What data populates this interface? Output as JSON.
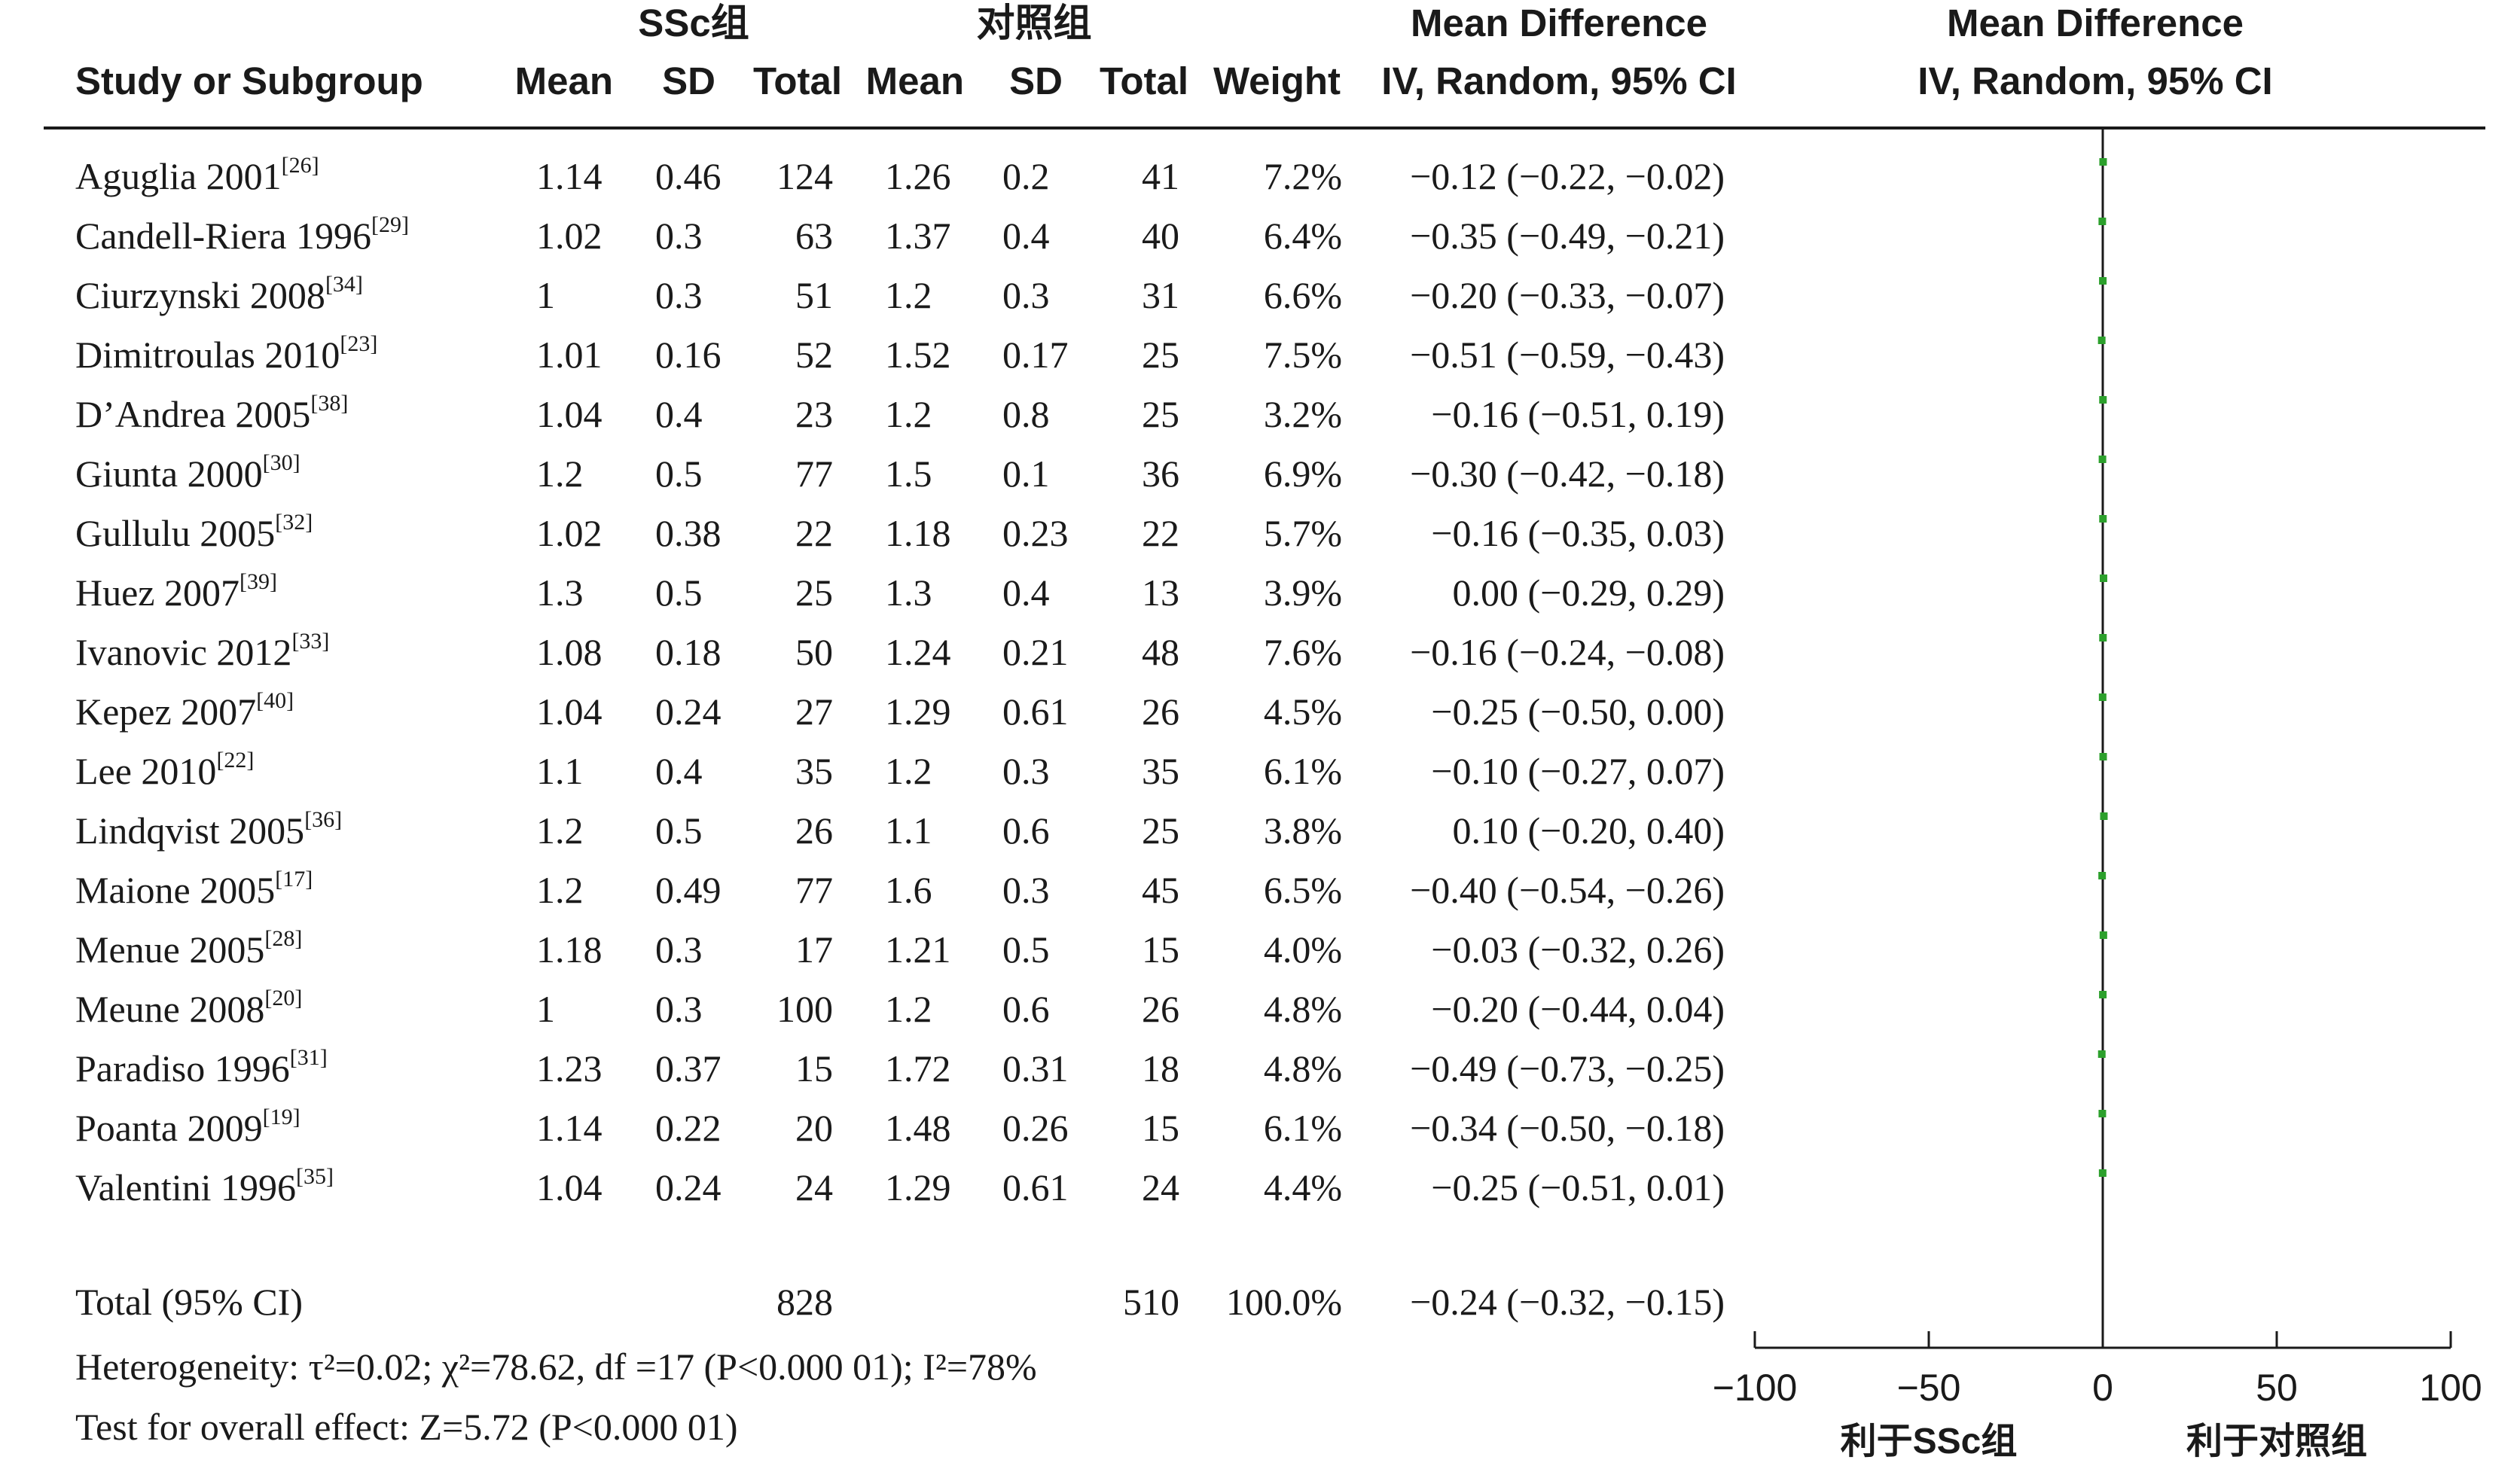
{
  "headers": {
    "group_ssc": "SSc组",
    "group_control": "对照组",
    "study": "Study or Subgroup",
    "mean": "Mean",
    "sd": "SD",
    "total": "Total",
    "weight": "Weight",
    "md_title": "Mean Difference",
    "md_method": "IV, Random, 95% CI",
    "plot_title": "Mean Difference",
    "plot_method": "IV, Random, 95% CI"
  },
  "rows": [
    {
      "study": "Aguglia 2001",
      "ref": "[26]",
      "ssc_mean": "1.14",
      "ssc_sd": "0.46",
      "ssc_total": "124",
      "ctl_mean": "1.26",
      "ctl_sd": "0.2",
      "ctl_total": "41",
      "weight": "7.2%",
      "ci": "−0.12 (−0.22, −0.02)"
    },
    {
      "study": "Candell-Riera 1996",
      "ref": "[29]",
      "ssc_mean": "1.02",
      "ssc_sd": "0.3",
      "ssc_total": "63",
      "ctl_mean": "1.37",
      "ctl_sd": "0.4",
      "ctl_total": "40",
      "weight": "6.4%",
      "ci": "−0.35 (−0.49, −0.21)"
    },
    {
      "study": "Ciurzynski 2008",
      "ref": "[34]",
      "ssc_mean": "1",
      "ssc_sd": "0.3",
      "ssc_total": "51",
      "ctl_mean": "1.2",
      "ctl_sd": "0.3",
      "ctl_total": "31",
      "weight": "6.6%",
      "ci": "−0.20 (−0.33, −0.07)"
    },
    {
      "study": "Dimitroulas 2010",
      "ref": "[23]",
      "ssc_mean": "1.01",
      "ssc_sd": "0.16",
      "ssc_total": "52",
      "ctl_mean": "1.52",
      "ctl_sd": "0.17",
      "ctl_total": "25",
      "weight": "7.5%",
      "ci": "−0.51 (−0.59, −0.43)"
    },
    {
      "study": "D’Andrea 2005",
      "ref": "[38]",
      "ssc_mean": "1.04",
      "ssc_sd": "0.4",
      "ssc_total": "23",
      "ctl_mean": "1.2",
      "ctl_sd": "0.8",
      "ctl_total": "25",
      "weight": "3.2%",
      "ci": "−0.16 (−0.51, 0.19)"
    },
    {
      "study": "Giunta 2000",
      "ref": "[30]",
      "ssc_mean": "1.2",
      "ssc_sd": "0.5",
      "ssc_total": "77",
      "ctl_mean": "1.5",
      "ctl_sd": "0.1",
      "ctl_total": "36",
      "weight": "6.9%",
      "ci": "−0.30 (−0.42, −0.18)"
    },
    {
      "study": "Gullulu 2005",
      "ref": "[32]",
      "ssc_mean": "1.02",
      "ssc_sd": "0.38",
      "ssc_total": "22",
      "ctl_mean": "1.18",
      "ctl_sd": "0.23",
      "ctl_total": "22",
      "weight": "5.7%",
      "ci": "−0.16 (−0.35, 0.03)"
    },
    {
      "study": "Huez 2007",
      "ref": "[39]",
      "ssc_mean": "1.3",
      "ssc_sd": "0.5",
      "ssc_total": "25",
      "ctl_mean": "1.3",
      "ctl_sd": "0.4",
      "ctl_total": "13",
      "weight": "3.9%",
      "ci": "0.00 (−0.29, 0.29)"
    },
    {
      "study": "Ivanovic 2012",
      "ref": "[33]",
      "ssc_mean": "1.08",
      "ssc_sd": "0.18",
      "ssc_total": "50",
      "ctl_mean": "1.24",
      "ctl_sd": "0.21",
      "ctl_total": "48",
      "weight": "7.6%",
      "ci": "−0.16 (−0.24, −0.08)"
    },
    {
      "study": "Kepez 2007",
      "ref": "[40]",
      "ssc_mean": "1.04",
      "ssc_sd": "0.24",
      "ssc_total": "27",
      "ctl_mean": "1.29",
      "ctl_sd": "0.61",
      "ctl_total": "26",
      "weight": "4.5%",
      "ci": "−0.25 (−0.50, 0.00)"
    },
    {
      "study": "Lee 2010",
      "ref": "[22]",
      "ssc_mean": "1.1",
      "ssc_sd": "0.4",
      "ssc_total": "35",
      "ctl_mean": "1.2",
      "ctl_sd": "0.3",
      "ctl_total": "35",
      "weight": "6.1%",
      "ci": "−0.10 (−0.27, 0.07)"
    },
    {
      "study": "Lindqvist 2005",
      "ref": "[36]",
      "ssc_mean": "1.2",
      "ssc_sd": "0.5",
      "ssc_total": "26",
      "ctl_mean": "1.1",
      "ctl_sd": "0.6",
      "ctl_total": "25",
      "weight": "3.8%",
      "ci": "0.10 (−0.20, 0.40)"
    },
    {
      "study": "Maione 2005",
      "ref": "[17]",
      "ssc_mean": "1.2",
      "ssc_sd": "0.49",
      "ssc_total": "77",
      "ctl_mean": "1.6",
      "ctl_sd": "0.3",
      "ctl_total": "45",
      "weight": "6.5%",
      "ci": "−0.40 (−0.54, −0.26)"
    },
    {
      "study": "Menue 2005",
      "ref": "[28]",
      "ssc_mean": "1.18",
      "ssc_sd": "0.3",
      "ssc_total": "17",
      "ctl_mean": "1.21",
      "ctl_sd": "0.5",
      "ctl_total": "15",
      "weight": "4.0%",
      "ci": "−0.03 (−0.32, 0.26)"
    },
    {
      "study": "Meune 2008",
      "ref": "[20]",
      "ssc_mean": "1",
      "ssc_sd": "0.3",
      "ssc_total": "100",
      "ctl_mean": "1.2",
      "ctl_sd": "0.6",
      "ctl_total": "26",
      "weight": "4.8%",
      "ci": "−0.20 (−0.44, 0.04)"
    },
    {
      "study": "Paradiso 1996",
      "ref": "[31]",
      "ssc_mean": "1.23",
      "ssc_sd": "0.37",
      "ssc_total": "15",
      "ctl_mean": "1.72",
      "ctl_sd": "0.31",
      "ctl_total": "18",
      "weight": "4.8%",
      "ci": "−0.49 (−0.73, −0.25)"
    },
    {
      "study": "Poanta 2009",
      "ref": "[19]",
      "ssc_mean": "1.14",
      "ssc_sd": "0.22",
      "ssc_total": "20",
      "ctl_mean": "1.48",
      "ctl_sd": "0.26",
      "ctl_total": "15",
      "weight": "6.1%",
      "ci": "−0.34 (−0.50, −0.18)"
    },
    {
      "study": "Valentini 1996",
      "ref": "[35]",
      "ssc_mean": "1.04",
      "ssc_sd": "0.24",
      "ssc_total": "24",
      "ctl_mean": "1.29",
      "ctl_sd": "0.61",
      "ctl_total": "24",
      "weight": "4.4%",
      "ci": "−0.25 (−0.51, 0.01)"
    }
  ],
  "total_row": {
    "label": "Total (95% CI)",
    "ssc_total": "828",
    "ctl_total": "510",
    "weight": "100.0%",
    "ci": "−0.24 (−0.32, −0.15)"
  },
  "footer": {
    "heterogeneity": "Heterogeneity: τ²=0.02; χ²=78.62, df =17 (P<0.000 01); I²=78%",
    "overall_effect": "Test for overall effect: Z=5.72 (P<0.000 01)"
  },
  "chart_data": {
    "type": "scatter",
    "axis": {
      "ticks": [
        -100,
        -50,
        0,
        50,
        100
      ],
      "tick_labels": [
        "−100",
        "−50",
        "0",
        "50",
        "100"
      ],
      "xlim": [
        -100,
        100
      ]
    },
    "favours_left": "利于SSc组",
    "favours_right": "利于对照组",
    "marker_color": "#2ca02c",
    "points": [
      {
        "study": "Aguglia 2001",
        "md": -0.12,
        "lo": -0.22,
        "hi": -0.02
      },
      {
        "study": "Candell-Riera 1996",
        "md": -0.35,
        "lo": -0.49,
        "hi": -0.21
      },
      {
        "study": "Ciurzynski 2008",
        "md": -0.2,
        "lo": -0.33,
        "hi": -0.07
      },
      {
        "study": "Dimitroulas 2010",
        "md": -0.51,
        "lo": -0.59,
        "hi": -0.43
      },
      {
        "study": "D’Andrea 2005",
        "md": -0.16,
        "lo": -0.51,
        "hi": 0.19
      },
      {
        "study": "Giunta 2000",
        "md": -0.3,
        "lo": -0.42,
        "hi": -0.18
      },
      {
        "study": "Gullulu 2005",
        "md": -0.16,
        "lo": -0.35,
        "hi": 0.03
      },
      {
        "study": "Huez 2007",
        "md": 0.0,
        "lo": -0.29,
        "hi": 0.29
      },
      {
        "study": "Ivanovic 2012",
        "md": -0.16,
        "lo": -0.24,
        "hi": -0.08
      },
      {
        "study": "Kepez 2007",
        "md": -0.25,
        "lo": -0.5,
        "hi": 0.0
      },
      {
        "study": "Lee 2010",
        "md": -0.1,
        "lo": -0.27,
        "hi": 0.07
      },
      {
        "study": "Lindqvist 2005",
        "md": 0.1,
        "lo": -0.2,
        "hi": 0.4
      },
      {
        "study": "Maione 2005",
        "md": -0.4,
        "lo": -0.54,
        "hi": -0.26
      },
      {
        "study": "Menue 2005",
        "md": -0.03,
        "lo": -0.32,
        "hi": 0.26
      },
      {
        "study": "Meune 2008",
        "md": -0.2,
        "lo": -0.44,
        "hi": 0.04
      },
      {
        "study": "Paradiso 1996",
        "md": -0.49,
        "lo": -0.73,
        "hi": -0.25
      },
      {
        "study": "Poanta 2009",
        "md": -0.34,
        "lo": -0.5,
        "hi": -0.18
      },
      {
        "study": "Valentini 1996",
        "md": -0.25,
        "lo": -0.51,
        "hi": 0.01
      }
    ],
    "total": {
      "md": -0.24,
      "lo": -0.32,
      "hi": -0.15
    }
  }
}
